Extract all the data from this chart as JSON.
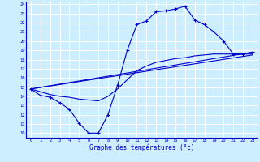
{
  "xlabel": "Graphe des températures (°c)",
  "background_color": "#cceeff",
  "grid_color": "#ffffff",
  "line_color": "#0000cc",
  "xlim": [
    -0.5,
    23.5
  ],
  "ylim": [
    9.5,
    24.3
  ],
  "xticks": [
    0,
    1,
    2,
    3,
    4,
    5,
    6,
    7,
    8,
    9,
    10,
    11,
    12,
    13,
    14,
    15,
    16,
    17,
    18,
    19,
    20,
    21,
    22,
    23
  ],
  "yticks": [
    10,
    11,
    12,
    13,
    14,
    15,
    16,
    17,
    18,
    19,
    20,
    21,
    22,
    23,
    24
  ],
  "line1_x": [
    0,
    1,
    2,
    3,
    4,
    5,
    6,
    7,
    8,
    9,
    10,
    11,
    12,
    13,
    14,
    15,
    16,
    17,
    18,
    19,
    20,
    21,
    22,
    23
  ],
  "line1_y": [
    14.8,
    14.1,
    13.9,
    13.3,
    12.6,
    11.1,
    10.0,
    10.0,
    12.0,
    15.2,
    19.0,
    21.8,
    22.2,
    23.2,
    23.3,
    23.5,
    23.8,
    22.3,
    21.8,
    21.0,
    20.0,
    18.6,
    18.6,
    18.8
  ],
  "line2_x": [
    0,
    2,
    3,
    4,
    5,
    6,
    7,
    8,
    9,
    10,
    11,
    12,
    13,
    14,
    15,
    16,
    17,
    18,
    19,
    20,
    21,
    22,
    23
  ],
  "line2_y": [
    14.8,
    14.2,
    14.0,
    13.9,
    13.7,
    13.6,
    13.5,
    14.0,
    14.8,
    15.8,
    16.8,
    17.3,
    17.7,
    17.9,
    18.1,
    18.2,
    18.4,
    18.5,
    18.6,
    18.6,
    18.6,
    18.6,
    18.6
  ],
  "line3_x": [
    0,
    23
  ],
  "line3_y": [
    14.8,
    18.5
  ],
  "line4_x": [
    0,
    23
  ],
  "line4_y": [
    14.8,
    18.8
  ]
}
